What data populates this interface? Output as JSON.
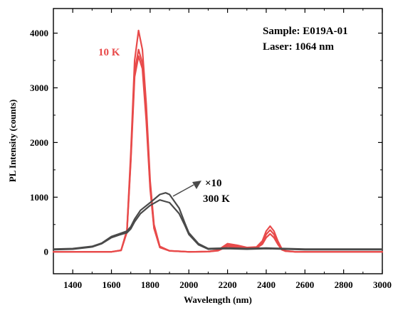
{
  "chart_data": {
    "type": "line",
    "title": "",
    "xlabel": "Wavelength (nm)",
    "ylabel": "PL Intensity (counts)",
    "xlim": [
      1300,
      3000
    ],
    "ylim": [
      -400,
      4450
    ],
    "xticks": [
      1400,
      1600,
      1800,
      2000,
      2200,
      2400,
      2600,
      2800,
      3000
    ],
    "yticks": [
      0,
      1000,
      2000,
      3000,
      4000
    ],
    "grid": false,
    "legend": "none",
    "annotations": {
      "sample": "Sample: E019A-01",
      "laser": "Laser: 1064 nm",
      "low_temp": "10 K",
      "scale": "×10",
      "high_temp": "300 K"
    },
    "colors": {
      "red_series": "#e84a4a",
      "gray_series": "#4a4a4a"
    },
    "series": [
      {
        "color": "#e84a4a",
        "x": [
          1300,
          1600,
          1650,
          1680,
          1700,
          1720,
          1740,
          1760,
          1780,
          1800,
          1820,
          1850,
          1900,
          2000,
          2100,
          2150,
          2200,
          2250,
          2300,
          2350,
          2380,
          2400,
          2420,
          2440,
          2460,
          2480,
          2500,
          2550,
          3000
        ],
        "y": [
          0,
          0,
          30,
          400,
          1800,
          3500,
          4050,
          3700,
          2700,
          1300,
          500,
          100,
          20,
          0,
          5,
          30,
          150,
          120,
          80,
          90,
          200,
          380,
          470,
          380,
          200,
          60,
          20,
          0,
          0
        ]
      },
      {
        "color": "#e84a4a",
        "x": [
          1300,
          1600,
          1650,
          1680,
          1700,
          1720,
          1740,
          1760,
          1780,
          1800,
          1820,
          1850,
          1900,
          2000,
          2100,
          2150,
          2200,
          2250,
          2300,
          2350,
          2380,
          2400,
          2420,
          2440,
          2460,
          2480,
          2500,
          2550,
          3000
        ],
        "y": [
          0,
          0,
          30,
          380,
          1700,
          3300,
          3700,
          3450,
          2500,
          1200,
          450,
          90,
          20,
          0,
          5,
          25,
          120,
          100,
          70,
          80,
          170,
          320,
          400,
          320,
          170,
          50,
          15,
          0,
          0
        ]
      },
      {
        "color": "#e84a4a",
        "x": [
          1300,
          1600,
          1650,
          1680,
          1700,
          1720,
          1740,
          1760,
          1780,
          1800,
          1820,
          1850,
          1900,
          2000,
          2100,
          2150,
          2200,
          2250,
          2300,
          2350,
          2380,
          2400,
          2420,
          2440,
          2460,
          2480,
          2500,
          2550,
          3000
        ],
        "y": [
          0,
          0,
          25,
          360,
          1650,
          3200,
          3580,
          3350,
          2400,
          1150,
          430,
          80,
          18,
          0,
          5,
          20,
          100,
          80,
          60,
          70,
          140,
          260,
          330,
          260,
          140,
          40,
          12,
          0,
          0
        ]
      },
      {
        "color": "#4a4a4a",
        "x": [
          1300,
          1400,
          1500,
          1550,
          1600,
          1640,
          1680,
          1700,
          1720,
          1750,
          1800,
          1850,
          1880,
          1900,
          1950,
          1980,
          2000,
          2050,
          2100,
          2200,
          2300,
          2400,
          2500,
          2600,
          2700,
          2800,
          2900,
          3000
        ],
        "y": [
          50,
          60,
          100,
          160,
          280,
          330,
          380,
          460,
          600,
          760,
          900,
          1050,
          1080,
          1050,
          800,
          520,
          350,
          150,
          60,
          70,
          60,
          70,
          60,
          50,
          50,
          50,
          50,
          50
        ]
      },
      {
        "color": "#4a4a4a",
        "x": [
          1300,
          1400,
          1500,
          1550,
          1600,
          1640,
          1680,
          1700,
          1720,
          1750,
          1800,
          1850,
          1880,
          1900,
          1950,
          1980,
          2000,
          2050,
          2100,
          2200,
          2300,
          2400,
          2500,
          2600,
          2700,
          2800,
          2900,
          3000
        ],
        "y": [
          40,
          50,
          90,
          150,
          260,
          310,
          350,
          420,
          550,
          700,
          850,
          950,
          920,
          900,
          700,
          480,
          320,
          130,
          50,
          60,
          50,
          60,
          50,
          40,
          40,
          40,
          40,
          40
        ]
      }
    ]
  }
}
